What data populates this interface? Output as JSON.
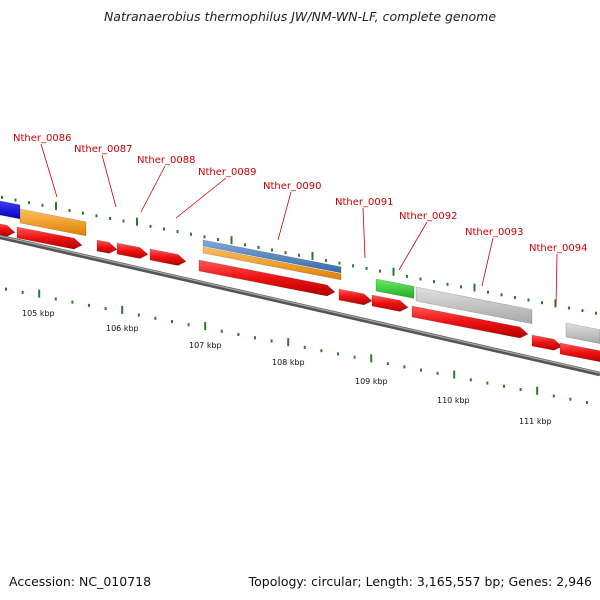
{
  "title": "Natranaerobius thermophilus JW/NM-WN-LF, complete genome",
  "footer": {
    "accession": "Accession: NC_010718",
    "summary": "Topology: circular; Length: 3,165,557 bp; Genes: 2,946"
  },
  "colors": {
    "cds": "#ee1111",
    "orange": "#ff9900",
    "steelblue": "#4f86c6",
    "green": "#33cc33",
    "gray": "#c8c8c8",
    "blue": "#1a1aee",
    "label": "#cc0000",
    "tick": "#2a7a2a",
    "backbone": "#808080"
  },
  "gene_labels": [
    "Nther_0086",
    "Nther_0087",
    "Nther_0088",
    "Nther_0089",
    "Nther_0090",
    "Nther_0091",
    "Nther_0092",
    "Nther_0093",
    "Nther_0094"
  ],
  "kbp_labels": [
    "105 kbp",
    "106 kbp",
    "107 kbp",
    "108 kbp",
    "109 kbp",
    "110 kbp",
    "111 kbp"
  ]
}
